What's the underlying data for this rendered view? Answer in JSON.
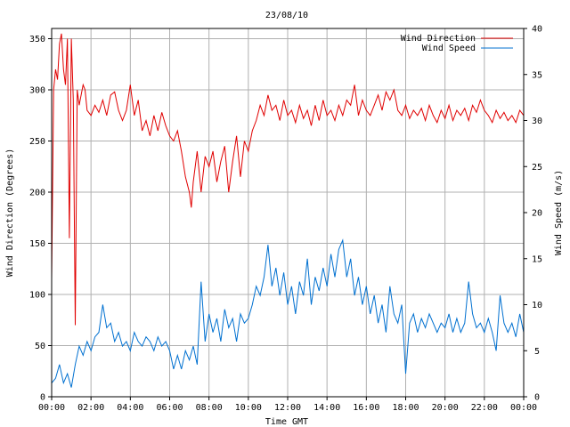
{
  "chart_data": {
    "type": "line",
    "title": "23/08/10",
    "xlabel": "Time GMT",
    "ylabel_left": "Wind Direction (Degrees)",
    "ylabel_right": "Wind Speed (m/s)",
    "grid": true,
    "legend_position": "top-right",
    "x_ticks": [
      "00:00",
      "02:00",
      "04:00",
      "06:00",
      "08:00",
      "10:00",
      "12:00",
      "14:00",
      "16:00",
      "18:00",
      "20:00",
      "22:00",
      "00:00"
    ],
    "x_range_hours": [
      0,
      24
    ],
    "y_left_range": [
      0,
      360
    ],
    "y_left_ticks": [
      0,
      50,
      100,
      150,
      200,
      250,
      300,
      350
    ],
    "y_right_range": [
      0,
      40
    ],
    "y_right_ticks": [
      0,
      5,
      10,
      15,
      20,
      25,
      30,
      35,
      40
    ],
    "series": [
      {
        "name": "Wind Direction",
        "axis": "left",
        "color": "#e00000",
        "points": [
          [
            0,
            115
          ],
          [
            0.1,
            300
          ],
          [
            0.2,
            320
          ],
          [
            0.3,
            310
          ],
          [
            0.4,
            345
          ],
          [
            0.5,
            355
          ],
          [
            0.6,
            320
          ],
          [
            0.7,
            305
          ],
          [
            0.8,
            350
          ],
          [
            0.9,
            155
          ],
          [
            1.0,
            350
          ],
          [
            1.1,
            290
          ],
          [
            1.2,
            70
          ],
          [
            1.3,
            300
          ],
          [
            1.4,
            285
          ],
          [
            1.5,
            295
          ],
          [
            1.6,
            305
          ],
          [
            1.7,
            300
          ],
          [
            1.8,
            280
          ],
          [
            2.0,
            275
          ],
          [
            2.2,
            285
          ],
          [
            2.4,
            278
          ],
          [
            2.6,
            290
          ],
          [
            2.8,
            275
          ],
          [
            3.0,
            295
          ],
          [
            3.2,
            298
          ],
          [
            3.4,
            280
          ],
          [
            3.6,
            270
          ],
          [
            3.8,
            280
          ],
          [
            4.0,
            305
          ],
          [
            4.2,
            275
          ],
          [
            4.4,
            290
          ],
          [
            4.6,
            260
          ],
          [
            4.8,
            270
          ],
          [
            5.0,
            255
          ],
          [
            5.2,
            275
          ],
          [
            5.4,
            260
          ],
          [
            5.6,
            278
          ],
          [
            5.8,
            265
          ],
          [
            6.0,
            255
          ],
          [
            6.2,
            250
          ],
          [
            6.4,
            260
          ],
          [
            6.6,
            240
          ],
          [
            6.8,
            215
          ],
          [
            7.0,
            200
          ],
          [
            7.1,
            185
          ],
          [
            7.2,
            210
          ],
          [
            7.4,
            240
          ],
          [
            7.6,
            200
          ],
          [
            7.8,
            235
          ],
          [
            8.0,
            225
          ],
          [
            8.2,
            240
          ],
          [
            8.4,
            210
          ],
          [
            8.6,
            230
          ],
          [
            8.8,
            245
          ],
          [
            9.0,
            200
          ],
          [
            9.2,
            230
          ],
          [
            9.4,
            255
          ],
          [
            9.6,
            215
          ],
          [
            9.8,
            250
          ],
          [
            10.0,
            240
          ],
          [
            10.2,
            260
          ],
          [
            10.4,
            270
          ],
          [
            10.6,
            285
          ],
          [
            10.8,
            275
          ],
          [
            11.0,
            295
          ],
          [
            11.2,
            280
          ],
          [
            11.4,
            285
          ],
          [
            11.6,
            270
          ],
          [
            11.8,
            290
          ],
          [
            12.0,
            275
          ],
          [
            12.2,
            280
          ],
          [
            12.4,
            268
          ],
          [
            12.6,
            285
          ],
          [
            12.8,
            272
          ],
          [
            13.0,
            280
          ],
          [
            13.2,
            265
          ],
          [
            13.4,
            285
          ],
          [
            13.6,
            270
          ],
          [
            13.8,
            290
          ],
          [
            14.0,
            275
          ],
          [
            14.2,
            280
          ],
          [
            14.4,
            270
          ],
          [
            14.6,
            285
          ],
          [
            14.8,
            275
          ],
          [
            15.0,
            290
          ],
          [
            15.2,
            285
          ],
          [
            15.4,
            305
          ],
          [
            15.6,
            275
          ],
          [
            15.8,
            290
          ],
          [
            16.0,
            280
          ],
          [
            16.2,
            275
          ],
          [
            16.4,
            285
          ],
          [
            16.6,
            295
          ],
          [
            16.8,
            280
          ],
          [
            17.0,
            298
          ],
          [
            17.2,
            290
          ],
          [
            17.4,
            300
          ],
          [
            17.6,
            280
          ],
          [
            17.8,
            275
          ],
          [
            18.0,
            285
          ],
          [
            18.2,
            272
          ],
          [
            18.4,
            280
          ],
          [
            18.6,
            275
          ],
          [
            18.8,
            282
          ],
          [
            19.0,
            270
          ],
          [
            19.2,
            285
          ],
          [
            19.4,
            275
          ],
          [
            19.6,
            268
          ],
          [
            19.8,
            280
          ],
          [
            20.0,
            272
          ],
          [
            20.2,
            285
          ],
          [
            20.4,
            270
          ],
          [
            20.6,
            280
          ],
          [
            20.8,
            275
          ],
          [
            21.0,
            282
          ],
          [
            21.2,
            270
          ],
          [
            21.4,
            285
          ],
          [
            21.6,
            278
          ],
          [
            21.8,
            290
          ],
          [
            22.0,
            280
          ],
          [
            22.2,
            275
          ],
          [
            22.4,
            268
          ],
          [
            22.6,
            280
          ],
          [
            22.8,
            272
          ],
          [
            23.0,
            278
          ],
          [
            23.2,
            270
          ],
          [
            23.4,
            275
          ],
          [
            23.6,
            268
          ],
          [
            23.8,
            280
          ],
          [
            24.0,
            275
          ]
        ]
      },
      {
        "name": "Wind Speed",
        "axis": "right",
        "color": "#0070d0",
        "points": [
          [
            0,
            1.5
          ],
          [
            0.2,
            2
          ],
          [
            0.4,
            3.5
          ],
          [
            0.6,
            1.5
          ],
          [
            0.8,
            2.5
          ],
          [
            1.0,
            1.0
          ],
          [
            1.2,
            3.5
          ],
          [
            1.4,
            5.5
          ],
          [
            1.6,
            4.5
          ],
          [
            1.8,
            6
          ],
          [
            2.0,
            5
          ],
          [
            2.2,
            6.5
          ],
          [
            2.4,
            7
          ],
          [
            2.6,
            10
          ],
          [
            2.8,
            7.5
          ],
          [
            3.0,
            8
          ],
          [
            3.2,
            6
          ],
          [
            3.4,
            7
          ],
          [
            3.6,
            5.5
          ],
          [
            3.8,
            6
          ],
          [
            4.0,
            5
          ],
          [
            4.2,
            7
          ],
          [
            4.4,
            6
          ],
          [
            4.6,
            5.5
          ],
          [
            4.8,
            6.5
          ],
          [
            5.0,
            6
          ],
          [
            5.2,
            5
          ],
          [
            5.4,
            6.5
          ],
          [
            5.6,
            5.5
          ],
          [
            5.8,
            6
          ],
          [
            6.0,
            5
          ],
          [
            6.2,
            3
          ],
          [
            6.4,
            4.5
          ],
          [
            6.6,
            3
          ],
          [
            6.8,
            5
          ],
          [
            7.0,
            4
          ],
          [
            7.2,
            5.5
          ],
          [
            7.4,
            3.5
          ],
          [
            7.6,
            12.5
          ],
          [
            7.8,
            6
          ],
          [
            8.0,
            9
          ],
          [
            8.2,
            7
          ],
          [
            8.4,
            8.5
          ],
          [
            8.6,
            6
          ],
          [
            8.8,
            9.5
          ],
          [
            9.0,
            7.5
          ],
          [
            9.2,
            8.5
          ],
          [
            9.4,
            6
          ],
          [
            9.6,
            9
          ],
          [
            9.8,
            8
          ],
          [
            10.0,
            8.5
          ],
          [
            10.2,
            10
          ],
          [
            10.4,
            12
          ],
          [
            10.6,
            11
          ],
          [
            10.8,
            13
          ],
          [
            11.0,
            16.5
          ],
          [
            11.2,
            12
          ],
          [
            11.4,
            14
          ],
          [
            11.6,
            11
          ],
          [
            11.8,
            13.5
          ],
          [
            12.0,
            10
          ],
          [
            12.2,
            12
          ],
          [
            12.4,
            9
          ],
          [
            12.6,
            12.5
          ],
          [
            12.8,
            11
          ],
          [
            13.0,
            15
          ],
          [
            13.2,
            10
          ],
          [
            13.4,
            13
          ],
          [
            13.6,
            11.5
          ],
          [
            13.8,
            14
          ],
          [
            14.0,
            12
          ],
          [
            14.2,
            15.5
          ],
          [
            14.4,
            13
          ],
          [
            14.6,
            16
          ],
          [
            14.8,
            17
          ],
          [
            15.0,
            13
          ],
          [
            15.2,
            15
          ],
          [
            15.4,
            11
          ],
          [
            15.6,
            13
          ],
          [
            15.8,
            10
          ],
          [
            16.0,
            12
          ],
          [
            16.2,
            9
          ],
          [
            16.4,
            11
          ],
          [
            16.6,
            8
          ],
          [
            16.8,
            10
          ],
          [
            17.0,
            7
          ],
          [
            17.2,
            12
          ],
          [
            17.4,
            9
          ],
          [
            17.6,
            8
          ],
          [
            17.8,
            10
          ],
          [
            18.0,
            2.5
          ],
          [
            18.2,
            8
          ],
          [
            18.4,
            9
          ],
          [
            18.6,
            7
          ],
          [
            18.8,
            8.5
          ],
          [
            19.0,
            7.5
          ],
          [
            19.2,
            9
          ],
          [
            19.4,
            8
          ],
          [
            19.6,
            7
          ],
          [
            19.8,
            8
          ],
          [
            20.0,
            7.5
          ],
          [
            20.2,
            9
          ],
          [
            20.4,
            7
          ],
          [
            20.6,
            8.5
          ],
          [
            20.8,
            7
          ],
          [
            21.0,
            8
          ],
          [
            21.2,
            12.5
          ],
          [
            21.4,
            9
          ],
          [
            21.6,
            7.5
          ],
          [
            21.8,
            8
          ],
          [
            22.0,
            7
          ],
          [
            22.2,
            8.5
          ],
          [
            22.4,
            7
          ],
          [
            22.6,
            5
          ],
          [
            22.8,
            11
          ],
          [
            23.0,
            8
          ],
          [
            23.2,
            7
          ],
          [
            23.4,
            8
          ],
          [
            23.6,
            6.5
          ],
          [
            23.8,
            9
          ],
          [
            24.0,
            7
          ]
        ]
      }
    ]
  }
}
